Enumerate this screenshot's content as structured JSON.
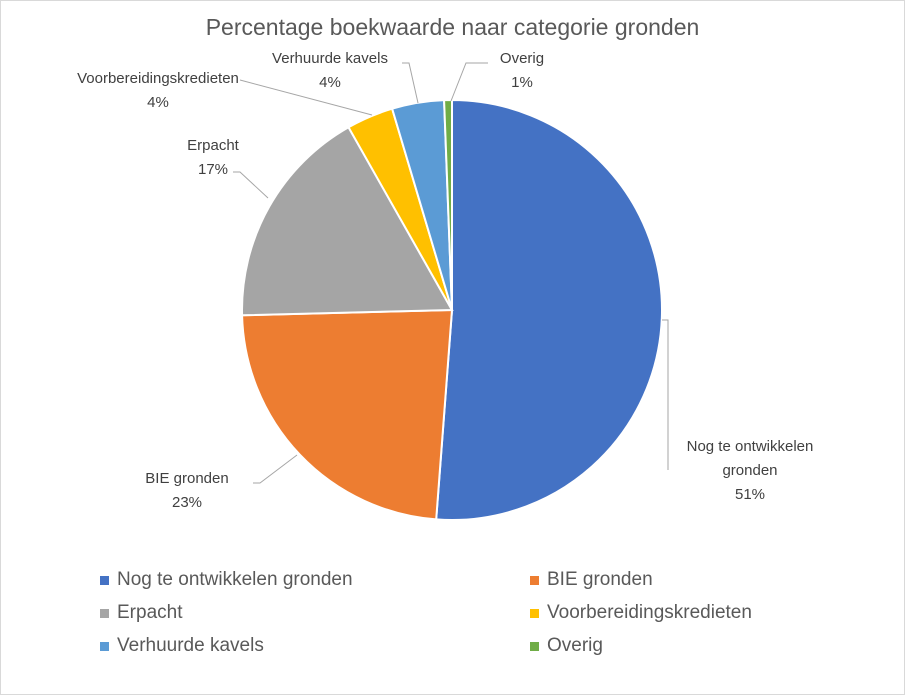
{
  "chart_data": {
    "type": "pie",
    "title": "Percentage boekwaarde naar categorie gronden",
    "categories": [
      "Nog te ontwikkelen gronden",
      "BIE gronden",
      "Erpacht",
      "Voorbereidingskredieten",
      "Verhuurde kavels",
      "Overig"
    ],
    "values": [
      51.2,
      23.4,
      17.2,
      3.6,
      4.0,
      0.6
    ],
    "labels": [
      "51%",
      "23%",
      "17%",
      "4%",
      "4%",
      "1%"
    ],
    "colors": [
      "#4472C4",
      "#ED7D31",
      "#A5A5A5",
      "#FFC000",
      "#5B9BD5",
      "#70AD47"
    ],
    "legend_position": "bottom"
  }
}
